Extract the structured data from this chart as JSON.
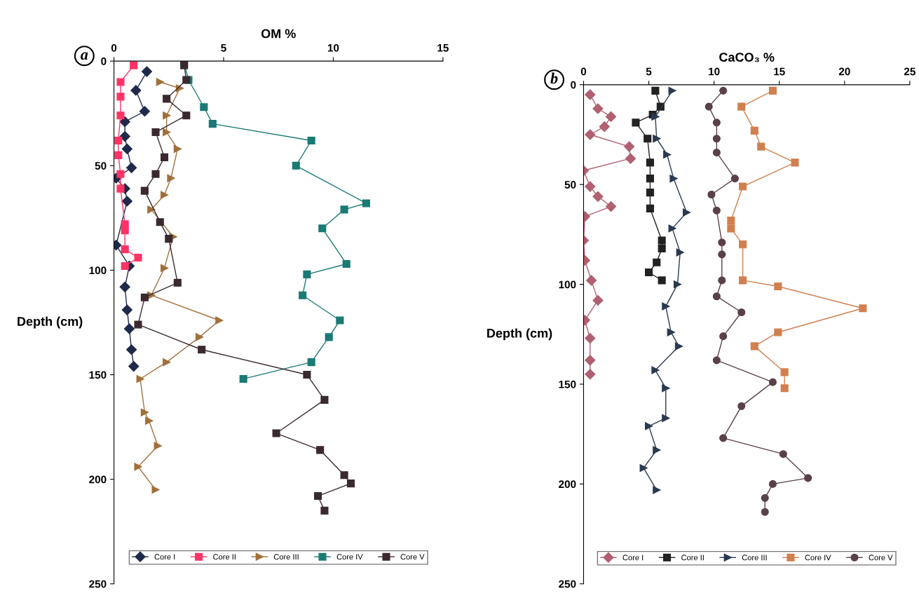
{
  "chart_data": [
    {
      "type": "line",
      "xlabel": "OM %",
      "ylabel": "Depth (cm)",
      "annotations": [
        "a"
      ],
      "xlim": [
        0,
        15
      ],
      "xticks": [
        0,
        5,
        10,
        15
      ],
      "ylim": [
        250,
        0
      ],
      "yticks": [
        0,
        50,
        100,
        150,
        200,
        250
      ],
      "grid": false,
      "legend": "bottom",
      "line_style": "solid",
      "series": [
        {
          "name": "Core I",
          "color": "#1f2a4a",
          "marker": "diamond",
          "x": [
            1.5,
            1.0,
            1.4,
            0.5,
            0.5,
            0.6,
            0.8,
            0.1,
            0.5,
            0.6,
            0.1,
            0.7,
            0.5,
            0.6,
            0.7,
            0.8,
            0.9
          ],
          "values": [
            5,
            14,
            24,
            29,
            36,
            42,
            51,
            56,
            61,
            67,
            88,
            98,
            108,
            119,
            128,
            138,
            146
          ]
        },
        {
          "name": "Core II",
          "color": "#ff3366",
          "marker": "square",
          "x": [
            0.9,
            0.3,
            0.3,
            0.3,
            0.2,
            0.2,
            0.3,
            0.3,
            0.5,
            0.5,
            0.5,
            1.1,
            0.5
          ],
          "values": [
            2,
            10,
            17,
            26,
            38,
            45,
            54,
            61,
            78,
            81,
            90,
            94,
            98
          ]
        },
        {
          "name": "Core III",
          "color": "#a0703a",
          "marker": "triangle",
          "x": [
            2.1,
            3.0,
            2.4,
            2.4,
            2.9,
            2.6,
            2.3,
            1.7,
            2.7,
            2.3,
            1.7,
            4.8,
            3.9,
            2.4,
            1.2,
            1.4,
            1.6,
            2.0,
            1.1,
            1.9
          ],
          "values": [
            10,
            13,
            26,
            34,
            42,
            56,
            64,
            71,
            84,
            99,
            112,
            124,
            132,
            144,
            152,
            168,
            172,
            184,
            194,
            205
          ]
        },
        {
          "name": "Core IV",
          "color": "#1a7a74",
          "marker": "square",
          "x": [
            3.2,
            3.4,
            4.1,
            4.5,
            9.0,
            8.3,
            11.5,
            10.5,
            9.5,
            10.6,
            8.8,
            8.6,
            10.3,
            9.8,
            9.0,
            5.9
          ],
          "values": [
            1,
            9,
            22,
            30,
            38,
            50,
            68,
            71,
            80,
            97,
            102,
            112,
            124,
            132,
            144,
            152
          ]
        },
        {
          "name": "Core V",
          "color": "#3a2a30",
          "marker": "square",
          "x": [
            3.2,
            3.3,
            2.4,
            3.3,
            1.9,
            2.3,
            1.9,
            1.4,
            2.1,
            2.5,
            2.9,
            1.4,
            1.1,
            4.0,
            8.8,
            9.6,
            7.4,
            9.4,
            10.5,
            10.8,
            9.3,
            9.6
          ],
          "values": [
            2,
            9,
            18,
            26,
            34,
            46,
            54,
            62,
            77,
            85,
            106,
            113,
            126,
            138,
            150,
            162,
            178,
            186,
            198,
            202,
            208,
            215
          ]
        }
      ]
    },
    {
      "type": "line",
      "xlabel": "CaCO₃ %",
      "ylabel": "Depth (cm)",
      "annotations": [
        "b"
      ],
      "xlim": [
        0,
        25
      ],
      "xticks": [
        0,
        5,
        10,
        15,
        20,
        25
      ],
      "ylim": [
        250,
        0
      ],
      "yticks": [
        0,
        50,
        100,
        150,
        200,
        250
      ],
      "grid": false,
      "legend": "bottom",
      "line_style": "solid",
      "series": [
        {
          "name": "Core I",
          "color": "#b06070",
          "marker": "diamond",
          "x": [
            0.5,
            1.1,
            2.1,
            1.6,
            0.5,
            3.5,
            3.6,
            0,
            0.5,
            1.1,
            2.1,
            0.1,
            0,
            0.1,
            0.6,
            1.1,
            0.1,
            0.5,
            0.5,
            0.5
          ],
          "values": [
            5,
            12,
            16,
            21,
            25,
            31,
            37,
            43,
            51,
            56,
            61,
            66,
            78,
            88,
            98,
            108,
            118,
            127,
            138,
            145
          ]
        },
        {
          "name": "Core II",
          "color": "#222222",
          "marker": "square",
          "x": [
            5.5,
            5.9,
            5.3,
            4.0,
            4.9,
            5.1,
            5.1,
            5.1,
            5.1,
            6.0,
            6.0,
            5.6,
            5.0,
            6.0
          ],
          "values": [
            3,
            11,
            15,
            19,
            27,
            39,
            47,
            54,
            62,
            78,
            82,
            89,
            94,
            98
          ]
        },
        {
          "name": "Core III",
          "color": "#2a3a50",
          "marker": "triangle",
          "x": [
            6.8,
            5.5,
            5.6,
            6.4,
            6.9,
            7.9,
            6.8,
            7.4,
            7.2,
            6.3,
            6.7,
            7.3,
            5.5,
            6.3,
            6.3,
            5.0,
            5.6,
            4.6,
            5.6
          ],
          "values": [
            3,
            16,
            27,
            35,
            47,
            64,
            72,
            84,
            100,
            111,
            124,
            131,
            143,
            152,
            167,
            171,
            183,
            192,
            203
          ]
        },
        {
          "name": "Core IV",
          "color": "#d08050",
          "marker": "square",
          "x": [
            14.5,
            12.1,
            13.1,
            13.6,
            16.2,
            12.2,
            11.3,
            11.3,
            12.2,
            12.2,
            14.9,
            21.4,
            14.9,
            13.1,
            15.4,
            15.4
          ],
          "values": [
            3,
            11,
            23,
            31,
            39,
            51,
            68,
            72,
            80,
            98,
            101,
            112,
            124,
            131,
            144,
            152
          ]
        },
        {
          "name": "Core V",
          "color": "#5a4048",
          "marker": "circle",
          "x": [
            10.7,
            9.6,
            10.2,
            10.2,
            10.2,
            11.6,
            9.8,
            10.2,
            10.6,
            10.6,
            10.6,
            10.2,
            12.1,
            10.7,
            10.2,
            14.5,
            12.1,
            10.7,
            15.3,
            17.2,
            14.5,
            13.9,
            13.9
          ],
          "values": [
            3,
            11,
            19,
            27,
            34,
            47,
            55,
            63,
            79,
            85,
            98,
            106,
            114,
            126,
            138,
            149,
            161,
            177,
            185,
            197,
            200,
            207,
            214
          ]
        }
      ]
    }
  ]
}
